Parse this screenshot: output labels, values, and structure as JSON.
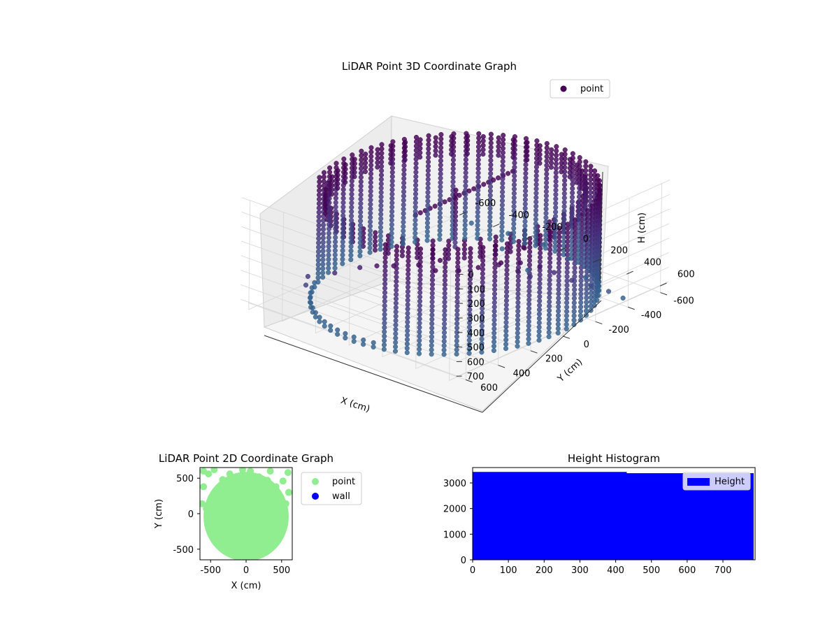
{
  "chart_data": [
    {
      "type": "scatter",
      "projection": "3d",
      "title": "LiDAR Point 3D Coordinate Graph",
      "xlabel": "X (cm)",
      "ylabel": "Y (cm)",
      "zlabel": "H (cm)",
      "xlim": [
        -650,
        650
      ],
      "ylim": [
        -650,
        650
      ],
      "zlim": [
        750,
        0
      ],
      "x_ticks": [
        -600,
        -400,
        -200,
        0,
        200,
        400,
        600
      ],
      "y_ticks": [
        -600,
        -400,
        -200,
        0,
        200,
        400,
        600
      ],
      "z_ticks": [
        0,
        100,
        200,
        300,
        400,
        500,
        600,
        700
      ],
      "legend": {
        "placement": "top-right",
        "entries": [
          "point"
        ]
      },
      "colormap": "viridis",
      "colormap_stops": [
        "#440154",
        "#472c7a",
        "#3b518b",
        "#2c718e",
        "#21908d",
        "#27ad81",
        "#5cc863",
        "#aadc32"
      ],
      "grid": true,
      "structure": {
        "wall_radius_cm": 620,
        "wall_height_range_cm": [
          180,
          720
        ],
        "opening_angle_deg": [
          80,
          150
        ]
      },
      "scattered_points": [
        {
          "x": 600,
          "y": 600,
          "h": 20
        },
        {
          "x": 620,
          "y": 500,
          "h": 40
        },
        {
          "x": 640,
          "y": 380,
          "h": 60
        },
        {
          "x": 640,
          "y": 260,
          "h": 120
        },
        {
          "x": 650,
          "y": 150,
          "h": 200
        },
        {
          "x": 630,
          "y": 40,
          "h": 300
        },
        {
          "x": 640,
          "y": -60,
          "h": 400
        },
        {
          "x": 640,
          "y": -180,
          "h": 500
        },
        {
          "x": 630,
          "y": -300,
          "h": 600
        },
        {
          "x": 620,
          "y": -400,
          "h": 700
        },
        {
          "x": 500,
          "y": 640,
          "h": 40
        },
        {
          "x": 380,
          "y": 620,
          "h": 60
        },
        {
          "x": 260,
          "y": 650,
          "h": 100
        },
        {
          "x": 150,
          "y": 640,
          "h": 150
        },
        {
          "x": 30,
          "y": 620,
          "h": 220
        },
        {
          "x": -100,
          "y": 640,
          "h": 300
        },
        {
          "x": -250,
          "y": 650,
          "h": 380
        },
        {
          "x": -300,
          "y": 610,
          "h": 480
        },
        {
          "x": 550,
          "y": 300,
          "h": 150
        },
        {
          "x": 520,
          "y": 150,
          "h": 280
        },
        {
          "x": 450,
          "y": 0,
          "h": 420
        },
        {
          "x": 300,
          "y": -500,
          "h": 740
        },
        {
          "x": 100,
          "y": -600,
          "h": 740
        },
        {
          "x": -100,
          "y": -650,
          "h": 750
        },
        {
          "x": -300,
          "y": -640,
          "h": 750
        },
        {
          "x": -500,
          "y": -620,
          "h": 750
        },
        {
          "x": 50,
          "y": -400,
          "h": 740
        },
        {
          "x": -200,
          "y": -500,
          "h": 745
        },
        {
          "x": 600,
          "y": 200,
          "h": 60
        },
        {
          "x": 450,
          "y": 560,
          "h": 30
        }
      ]
    },
    {
      "type": "scatter",
      "title": "LiDAR Point 2D Coordinate Graph",
      "xlabel": "X (cm)",
      "ylabel": "Y (cm)",
      "xlim": [
        -650,
        650
      ],
      "ylim": [
        -650,
        650
      ],
      "x_ticks": [
        -500,
        0,
        500
      ],
      "y_ticks": [
        -500,
        0,
        500
      ],
      "legend": {
        "placement": "outside-right",
        "entries": [
          "point",
          "wall"
        ]
      },
      "series": [
        {
          "name": "point",
          "color": "#90ee90"
        },
        {
          "name": "wall",
          "color": "#0000ff"
        }
      ],
      "disc_radius_cm": 600,
      "edge_points": [
        {
          "x": -600,
          "y": 600
        },
        {
          "x": -530,
          "y": 560
        },
        {
          "x": -450,
          "y": 620
        },
        {
          "x": -330,
          "y": 480
        },
        {
          "x": -230,
          "y": 560
        },
        {
          "x": -120,
          "y": 470
        },
        {
          "x": -50,
          "y": 620
        },
        {
          "x": 60,
          "y": 600
        },
        {
          "x": 180,
          "y": 520
        },
        {
          "x": 300,
          "y": 470
        },
        {
          "x": 340,
          "y": 600
        },
        {
          "x": 420,
          "y": 380
        },
        {
          "x": 520,
          "y": 460
        },
        {
          "x": 590,
          "y": 580
        },
        {
          "x": 600,
          "y": 300
        },
        {
          "x": -620,
          "y": 140
        },
        {
          "x": -560,
          "y": 70
        },
        {
          "x": -600,
          "y": 380
        },
        {
          "x": 560,
          "y": 140
        },
        {
          "x": 470,
          "y": 240
        }
      ]
    },
    {
      "type": "bar",
      "title": "Height Histogram",
      "xlabel": "",
      "ylabel": "",
      "xlim": [
        0,
        790
      ],
      "ylim": [
        0,
        3600
      ],
      "x_ticks": [
        0,
        100,
        200,
        300,
        400,
        500,
        600,
        700
      ],
      "y_ticks": [
        0,
        1000,
        2000,
        3000
      ],
      "legend": {
        "placement": "top-right",
        "entries": [
          "Height"
        ]
      },
      "series": [
        {
          "name": "Height",
          "color": "#0000ff"
        }
      ],
      "bins": [
        {
          "from": 0,
          "to": 430,
          "value": 3430
        },
        {
          "from": 430,
          "to": 785,
          "value": 3380
        }
      ]
    }
  ]
}
